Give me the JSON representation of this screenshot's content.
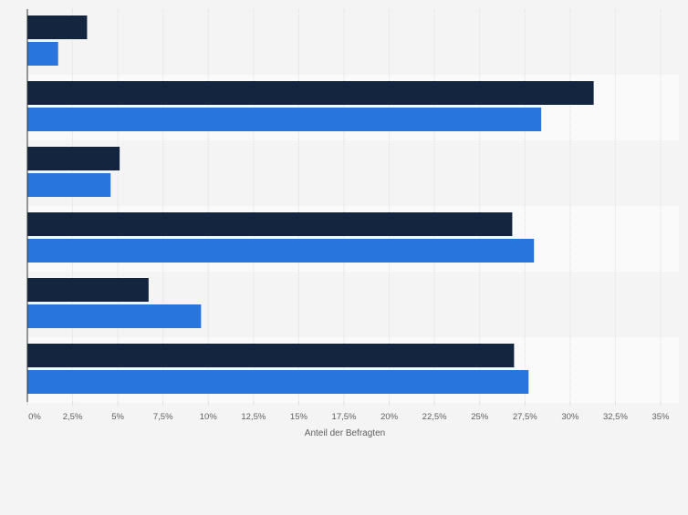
{
  "chart_data": {
    "type": "bar",
    "orientation": "horizontal",
    "title": "",
    "xlabel": "Anteil der Befragten",
    "ylabel": "",
    "xlim": [
      0,
      35
    ],
    "grid": true,
    "x_ticks": [
      {
        "value": 0,
        "label": "0%"
      },
      {
        "value": 2.5,
        "label": "2,5%"
      },
      {
        "value": 5,
        "label": "5%"
      },
      {
        "value": 7.5,
        "label": "7,5%"
      },
      {
        "value": 10,
        "label": "10%"
      },
      {
        "value": 12.5,
        "label": "12,5%"
      },
      {
        "value": 15,
        "label": "15%"
      },
      {
        "value": 17.5,
        "label": "17,5%"
      },
      {
        "value": 20,
        "label": "20%"
      },
      {
        "value": 22.5,
        "label": "22,5%"
      },
      {
        "value": 25,
        "label": "25%"
      },
      {
        "value": 27.5,
        "label": "27,5%"
      },
      {
        "value": 30,
        "label": "30%"
      },
      {
        "value": 32.5,
        "label": "32,5%"
      },
      {
        "value": 35,
        "label": "35%"
      }
    ],
    "categories": [
      "",
      "",
      "",
      "",
      "",
      ""
    ],
    "series": [
      {
        "name": "",
        "color": "#14263f",
        "values": [
          3.3,
          31.3,
          5.1,
          26.8,
          6.7,
          26.9
        ]
      },
      {
        "name": "",
        "color": "#2876dd",
        "values": [
          1.7,
          28.4,
          4.6,
          28.0,
          9.6,
          27.7
        ]
      }
    ]
  },
  "colors": {
    "page_background": "#f4f4f4",
    "band_light": "#fafafa",
    "band_dark": "#f4f4f4",
    "grid": "#dedede",
    "axis": "#333333",
    "tick_text": "#606060"
  }
}
